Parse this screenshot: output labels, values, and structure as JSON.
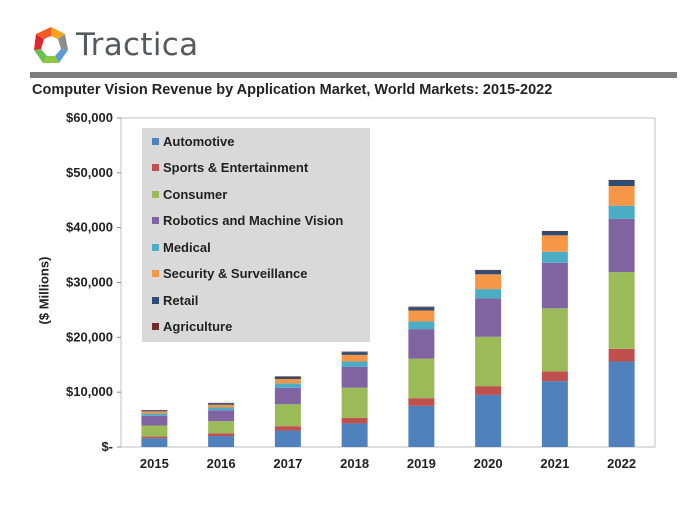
{
  "brand": {
    "name": "Tractica"
  },
  "colors": {
    "Automotive": "#4f81bd",
    "Sports & Entertainment": "#c0504d",
    "Consumer": "#9bbb59",
    "Robotics and Machine Vision": "#8064a2",
    "Medical": "#4bacc6",
    "Security & Surveillance": "#f79646",
    "Retail": "#2c4d75",
    "Agriculture": "#772c2a"
  },
  "chart_data": {
    "type": "bar",
    "stacked": true,
    "title": "Computer Vision Revenue by Application Market, World Markets: 2015-2022",
    "xlabel": "",
    "ylabel": "($ Millions)",
    "ylim": [
      0,
      60000
    ],
    "yticks": [
      "$-",
      "$10,000",
      "$20,000",
      "$30,000",
      "$40,000",
      "$50,000",
      "$60,000"
    ],
    "categories": [
      "2015",
      "2016",
      "2017",
      "2018",
      "2019",
      "2020",
      "2021",
      "2022"
    ],
    "legend_position": "top-left (inside plot)",
    "grid": false,
    "series": [
      {
        "name": "Automotive",
        "values": [
          1600,
          2000,
          3000,
          4300,
          7500,
          9500,
          12000,
          15600
        ]
      },
      {
        "name": "Sports & Entertainment",
        "values": [
          300,
          500,
          800,
          1000,
          1400,
          1600,
          1800,
          2300
        ]
      },
      {
        "name": "Consumer",
        "values": [
          2000,
          2200,
          4000,
          5500,
          7200,
          9000,
          11500,
          14000
        ]
      },
      {
        "name": "Robotics and Machine Vision",
        "values": [
          1800,
          2000,
          3000,
          3800,
          5400,
          7000,
          8300,
          9700
        ]
      },
      {
        "name": "Medical",
        "values": [
          400,
          500,
          800,
          1000,
          1400,
          1700,
          2000,
          2400
        ]
      },
      {
        "name": "Security & Surveillance",
        "values": [
          400,
          500,
          800,
          1200,
          2000,
          2700,
          3000,
          3600
        ]
      },
      {
        "name": "Retail",
        "values": [
          200,
          300,
          400,
          500,
          600,
          700,
          700,
          1000
        ]
      },
      {
        "name": "Agriculture",
        "values": [
          50,
          50,
          100,
          100,
          100,
          100,
          100,
          100
        ]
      }
    ]
  }
}
